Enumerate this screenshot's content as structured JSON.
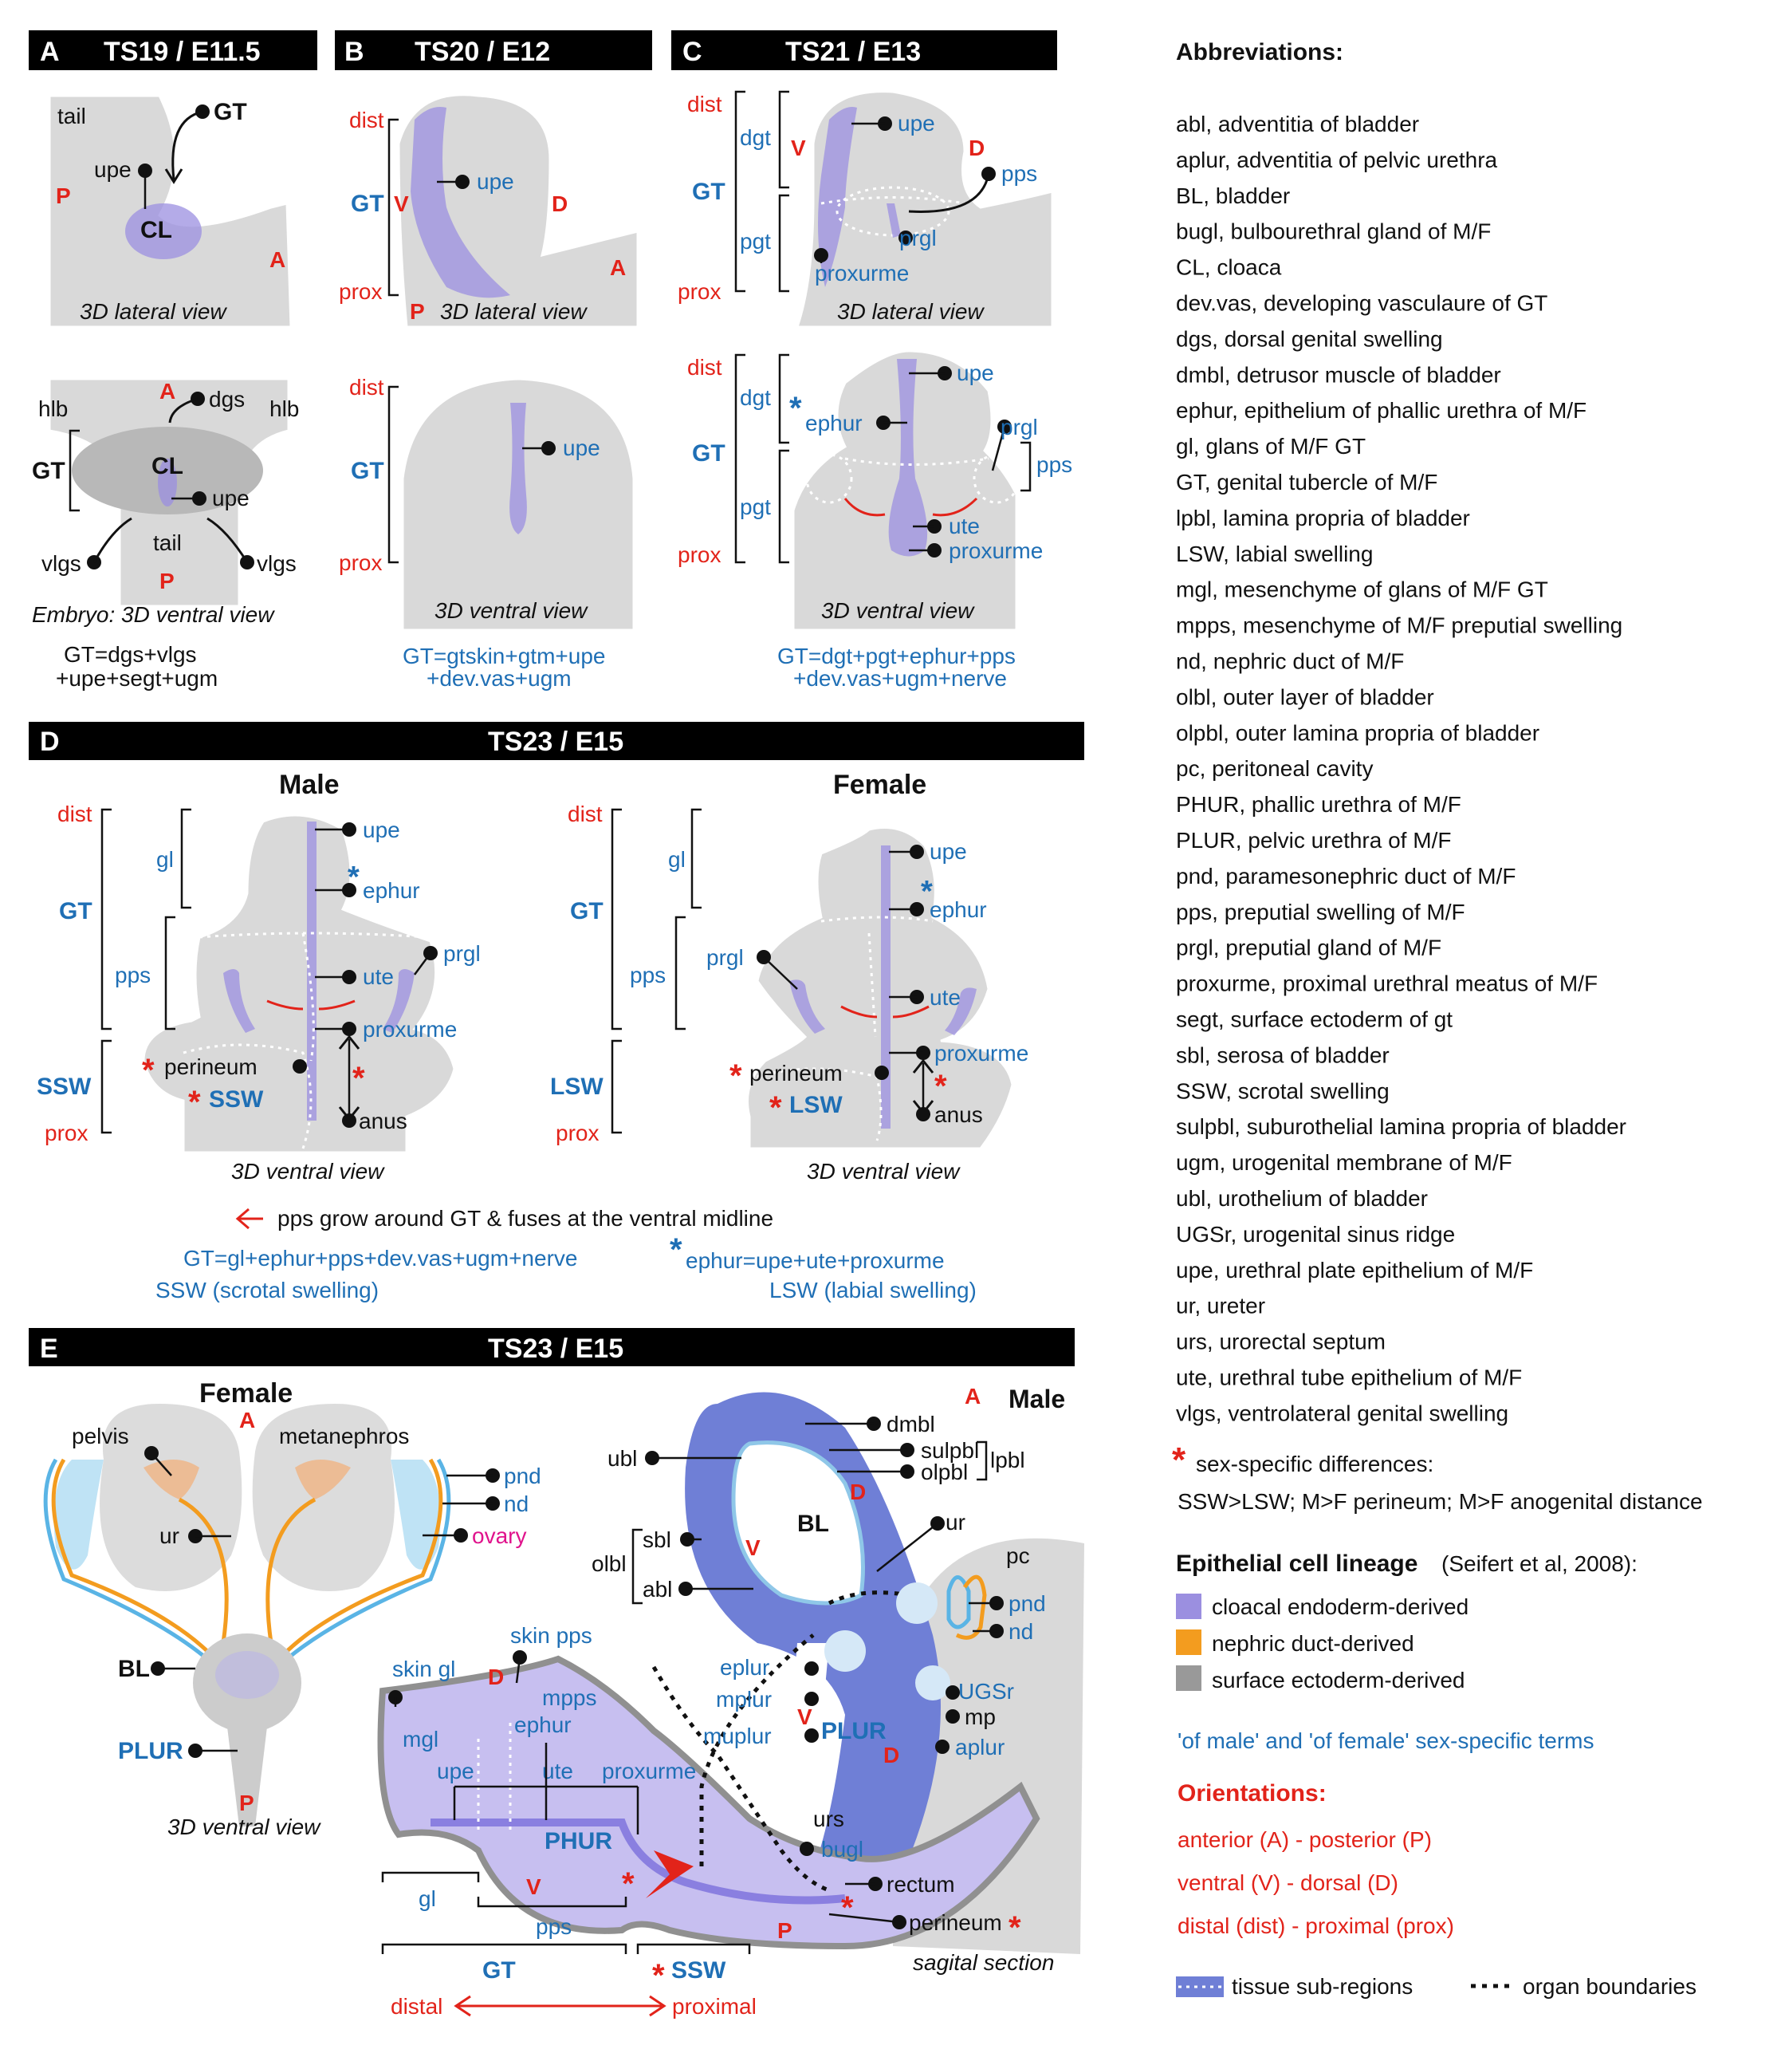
{
  "panels": {
    "a": {
      "letter": "A",
      "title": "TS19 / E11.5",
      "lateral": {
        "view": "3D lateral view",
        "labels": {
          "tail": "tail",
          "gt": "GT",
          "upe": "upe",
          "cl": "CL",
          "p": "P",
          "a": "A"
        }
      },
      "ventral": {
        "view": "Embryo: 3D ventral view",
        "labels": {
          "a": "A",
          "dgs": "dgs",
          "hlb_l": "hlb",
          "hlb_r": "hlb",
          "gt": "GT",
          "cl": "CL",
          "upe": "upe",
          "tail": "tail",
          "vlgs_l": "vlgs",
          "vlgs_r": "vlgs",
          "p": "P"
        }
      },
      "formula": [
        "GT=dgs+vlgs",
        "+upe+segt+ugm"
      ]
    },
    "b": {
      "letter": "B",
      "title": "TS20 / E12",
      "lateral": {
        "view": "3D lateral view",
        "labels": {
          "dist": "dist",
          "gt": "GT",
          "v": "V",
          "prox": "prox",
          "upe": "upe",
          "d": "D",
          "a": "A",
          "p": "P"
        }
      },
      "ventral": {
        "view": "3D ventral view",
        "labels": {
          "dist": "dist",
          "gt": "GT",
          "prox": "prox",
          "upe": "upe"
        }
      },
      "formula": [
        "GT=gtskin+gtm+upe",
        "+dev.vas+ugm"
      ]
    },
    "c": {
      "letter": "C",
      "title": "TS21 / E13",
      "lateral": {
        "view": "3D lateral view",
        "labels": {
          "dist": "dist",
          "dgt": "dgt",
          "v": "V",
          "upe": "upe",
          "d": "D",
          "pps": "pps",
          "gt": "GT",
          "pgt": "pgt",
          "prgl": "prgl",
          "proxurme": "proxurme",
          "prox": "prox"
        }
      },
      "ventral": {
        "view": "3D ventral view",
        "labels": {
          "dist": "dist",
          "dgt": "dgt",
          "upe": "upe",
          "ephur": "ephur",
          "prgl": "prgl",
          "pps": "pps",
          "gt": "GT",
          "pgt": "pgt",
          "ute": "ute",
          "proxurme": "proxurme",
          "prox": "prox",
          "star": "*"
        }
      },
      "formula": [
        "GT=dgt+pgt+ephur+pps",
        "+dev.vas+ugm+nerve"
      ]
    },
    "d": {
      "letter": "D",
      "title": "TS23 / E15",
      "male": {
        "title": "Male",
        "view": "3D ventral view",
        "labels": {
          "dist": "dist",
          "gl": "gl",
          "gt": "GT",
          "pps": "pps",
          "ssw": "SSW",
          "prox": "prox",
          "upe": "upe",
          "ephur": "ephur",
          "prgl": "prgl",
          "ute": "ute",
          "proxurme": "proxurme",
          "perineum": "perineum",
          "ssw_in": "SSW",
          "anus": "anus",
          "star": "*"
        }
      },
      "female": {
        "title": "Female",
        "view": "3D ventral view",
        "labels": {
          "dist": "dist",
          "gl": "gl",
          "gt": "GT",
          "pps": "pps",
          "lsw": "LSW",
          "prox": "prox",
          "upe": "upe",
          "ephur": "ephur",
          "prgl": "prgl",
          "ute": "ute",
          "proxurme": "proxurme",
          "perineum": "perineum",
          "lsw_in": "LSW",
          "anus": "anus",
          "star": "*"
        }
      },
      "notes": {
        "arrow": "pps grow around GT & fuses at the ventral midline",
        "gt_formula": "GT=gl+ephur+pps+dev.vas+ugm+nerve",
        "ephur_formula": "ephur=upe+ute+proxurme",
        "ssw": "SSW (scrotal swelling)",
        "lsw": "LSW (labial swelling)"
      }
    },
    "e": {
      "letter": "E",
      "title": "TS23 / E15",
      "female": {
        "title": "Female",
        "view": "3D ventral view",
        "labels": {
          "a": "A",
          "pelvis": "pelvis",
          "metanephros": "metanephros",
          "pnd": "pnd",
          "nd": "nd",
          "ovary": "ovary",
          "ur": "ur",
          "bl": "BL",
          "plur": "PLUR",
          "p": "P"
        }
      },
      "male": {
        "title": "Male",
        "view": "sagital section",
        "labels": {
          "a": "A",
          "dmbl": "dmbl",
          "ubl": "ubl",
          "sulpbl": "sulpbl",
          "olpbl": "olpbl",
          "lpbl": "lpbl",
          "d1": "D",
          "bl": "BL",
          "v1": "V",
          "ur": "ur",
          "sbl": "sbl",
          "olbl": "olbl",
          "abl": "abl",
          "pc": "pc",
          "pnd": "pnd",
          "nd": "nd",
          "skin_pps": "skin pps",
          "skin_gl": "skin gl",
          "d2": "D",
          "mpps": "mpps",
          "ephur": "ephur",
          "mgl": "mgl",
          "upe": "upe",
          "ute": "ute",
          "proxurme": "proxurme",
          "eplur": "eplur",
          "mplur": "mplur",
          "v2": "V",
          "muplur": "muplur",
          "plur": "PLUR",
          "ugsr": "UGSr",
          "mp": "mp",
          "aplur": "aplur",
          "d3": "D",
          "phur": "PHUR",
          "urs": "urs",
          "bugl": "bugl",
          "rectum": "rectum",
          "perineum": "perineum",
          "p": "P",
          "gl": "gl",
          "v3": "V",
          "pps": "pps",
          "gt": "GT",
          "ssw": "SSW",
          "distal": "distal",
          "proximal": "proximal"
        }
      }
    }
  },
  "legend": {
    "abbr_title": "Abbreviations:",
    "abbreviations": [
      "abl, adventitia of bladder",
      "aplur, adventitia of pelvic urethra",
      "BL, bladder",
      "bugl, bulbourethral gland of M/F",
      "CL, cloaca",
      "dev.vas, developing vasculaure of GT",
      "dgs, dorsal genital swelling",
      "dmbl, detrusor muscle of bladder",
      "ephur, epithelium of phallic urethra of M/F",
      "gl, glans of M/F GT",
      "GT, genital tubercle of M/F",
      "lpbl, lamina propria of bladder",
      "LSW, labial swelling",
      "mgl, mesenchyme of glans of M/F GT",
      "mpps, mesenchyme of M/F preputial swelling",
      "nd, nephric duct of M/F",
      "olbl, outer layer of bladder",
      "olpbl, outer lamina propria of bladder",
      "pc, peritoneal cavity",
      "PHUR, phallic urethra of M/F",
      "PLUR, pelvic urethra of M/F",
      "pnd, paramesonephric duct of M/F",
      "pps, preputial swelling of M/F",
      "prgl, preputial gland of M/F",
      "proxurme, proximal urethral meatus of M/F",
      "segt, surface ectoderm of gt",
      "sbl, serosa of bladder",
      "SSW, scrotal swelling",
      "sulpbl, suburothelial lamina propria of bladder",
      "ugm, urogenital membrane of M/F",
      "ubl, urothelium of bladder",
      "UGSr, urogenital sinus ridge",
      "upe, urethral plate epithelium of M/F",
      "ur, ureter",
      "urs, urorectal septum",
      "ute, urethral tube epithelium of M/F",
      "vlgs, ventrolateral genital swelling"
    ],
    "sex_star": "*",
    "sex_title": "sex-specific differences:",
    "sex_text": "SSW>LSW; M>F perineum; M>F anogenital distance",
    "lineage_title": "Epithelial cell lineage",
    "lineage_cite": "(Seifert et al, 2008):",
    "lineage": [
      {
        "label": "cloacal endoderm-derived",
        "color": "#9b8fe0"
      },
      {
        "label": "nephric duct-derived",
        "color": "#f39c1f"
      },
      {
        "label": "surface ectoderm-derived",
        "color": "#999999"
      }
    ],
    "sexterms": "'of male' and 'of female' sex-specific terms",
    "orient_title": "Orientations:",
    "orient": [
      "anterior (A) - posterior (P)",
      "ventral (V) - dorsal (D)",
      "distal (dist) - proximal (prox)"
    ],
    "subregions": "tissue sub-regions",
    "boundaries": "organ boundaries"
  },
  "colors": {
    "endoderm": "#9b8fe0",
    "nephric": "#f39c1f",
    "ectoderm": "#999999",
    "red": "#e2231a",
    "blue": "#1f6fb5",
    "tissue": "#d9d9d9"
  }
}
